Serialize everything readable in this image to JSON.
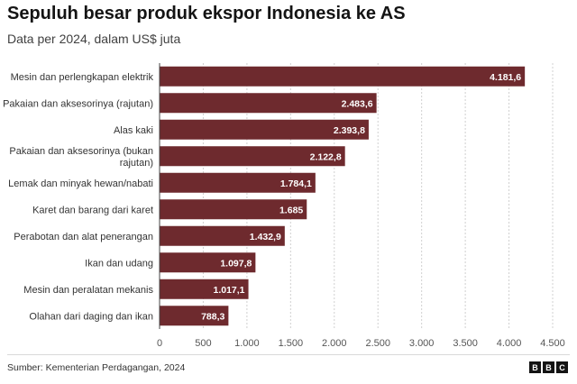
{
  "header": {
    "title": "Sepuluh besar produk ekspor Indonesia ke AS",
    "subtitle": "Data per 2024, dalam US$ juta"
  },
  "footer": {
    "source": "Sumber: Kementerian Perdagangan, 2024",
    "logo_letters": [
      "B",
      "B",
      "C"
    ]
  },
  "colors": {
    "bar": "#6e2a2e",
    "grid": "#d0d0d0",
    "axis": "#555555"
  },
  "chart_data": {
    "type": "bar",
    "orientation": "horizontal",
    "title": "Sepuluh besar produk ekspor Indonesia ke AS",
    "subtitle": "Data per 2024, dalam US$ juta",
    "categories": [
      "Mesin dan perlengkapan elektrik",
      "Pakaian dan aksesorinya (rajutan)",
      "Alas kaki",
      "Pakaian dan aksesorinya (bukan rajutan)",
      "Lemak dan minyak hewan/nabati",
      "Karet dan barang dari karet",
      "Perabotan dan alat penerangan",
      "Ikan dan udang",
      "Mesin dan peralatan mekanis",
      "Olahan dari daging dan ikan"
    ],
    "category_lines": [
      [
        "Mesin dan perlengkapan elektrik"
      ],
      [
        "Pakaian dan aksesorinya (rajutan)"
      ],
      [
        "Alas kaki"
      ],
      [
        "Pakaian dan aksesorinya (bukan",
        "rajutan)"
      ],
      [
        "Lemak dan minyak hewan/nabati"
      ],
      [
        "Karet dan barang dari karet"
      ],
      [
        "Perabotan dan alat penerangan"
      ],
      [
        "Ikan dan udang"
      ],
      [
        "Mesin dan peralatan mekanis"
      ],
      [
        "Olahan dari daging dan ikan"
      ]
    ],
    "values": [
      4181.6,
      2483.6,
      2393.8,
      2122.8,
      1784.1,
      1685,
      1432.9,
      1097.8,
      1017.1,
      788.3
    ],
    "value_labels": [
      "4.181,6",
      "2.483,6",
      "2.393,8",
      "2.122,8",
      "1.784,1",
      "1.685",
      "1.432,9",
      "1.097,8",
      "1.017,1",
      "788,3"
    ],
    "xlim": [
      0,
      4500
    ],
    "ticks": [
      0,
      500,
      1000,
      1500,
      2000,
      2500,
      3000,
      3500,
      4000,
      4500
    ],
    "tick_labels": [
      "0",
      "500",
      "1.000",
      "1.500",
      "2.000",
      "2.500",
      "3.000",
      "3.500",
      "4.000",
      "4.500"
    ],
    "xlabel": "",
    "ylabel": "",
    "grid": true
  }
}
